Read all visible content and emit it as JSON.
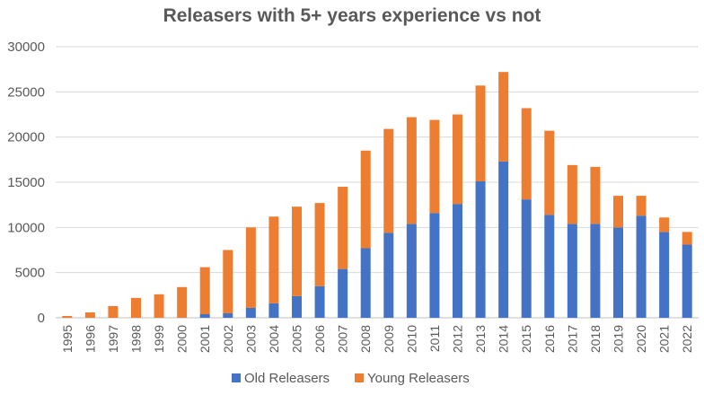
{
  "chart_data": {
    "type": "bar",
    "stacked": true,
    "title": "Releasers with 5+ years experience vs not",
    "xlabel": "",
    "ylabel": "",
    "ylim": [
      0,
      30000
    ],
    "yticks": [
      "0",
      "5000",
      "10000",
      "15000",
      "20000",
      "25000",
      "30000"
    ],
    "grid": true,
    "legend_position": "bottom",
    "categories": [
      "1995",
      "1996",
      "1997",
      "1998",
      "1999",
      "2000",
      "2001",
      "2002",
      "2003",
      "2004",
      "2005",
      "2006",
      "2007",
      "2008",
      "2009",
      "2010",
      "2011",
      "2012",
      "2013",
      "2014",
      "2015",
      "2016",
      "2017",
      "2018",
      "2019",
      "2020",
      "2021",
      "2022"
    ],
    "series": [
      {
        "name": "Old Releasers",
        "color": "#4472C4",
        "values": [
          0,
          0,
          0,
          0,
          0,
          0,
          400,
          500,
          1100,
          1600,
          2400,
          3500,
          5400,
          7700,
          9400,
          10400,
          11600,
          12600,
          15100,
          17300,
          13100,
          11400,
          10400,
          10400,
          10000,
          11300,
          9500,
          8100
        ]
      },
      {
        "name": "Young Releasers",
        "color": "#ED7D31",
        "values": [
          200,
          600,
          1300,
          2200,
          2600,
          3400,
          5200,
          7000,
          8900,
          9600,
          9900,
          9200,
          9100,
          10800,
          11500,
          11800,
          10300,
          9900,
          10600,
          9900,
          10100,
          9300,
          6500,
          6300,
          3500,
          2200,
          1600,
          1400
        ]
      }
    ]
  }
}
